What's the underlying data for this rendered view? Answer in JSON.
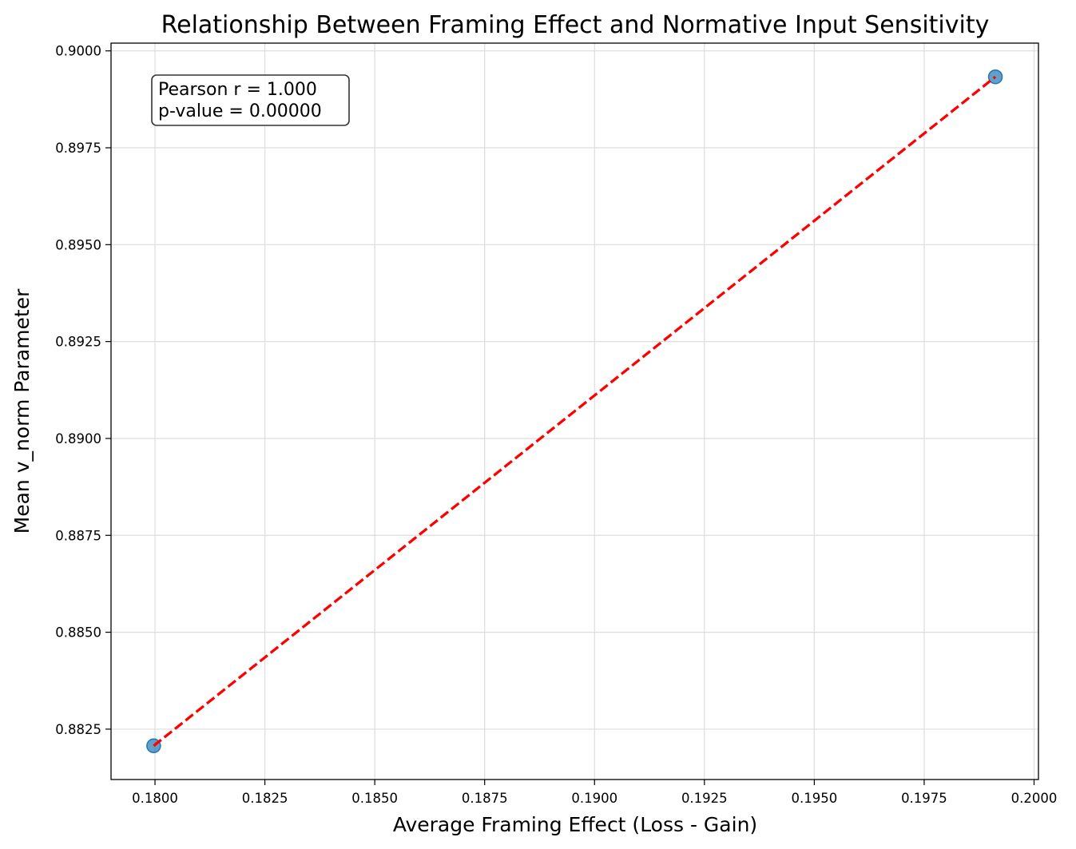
{
  "chart_data": {
    "type": "scatter",
    "title": "Relationship Between Framing Effect and Normative Input Sensitivity",
    "xlabel": "Average Framing Effect (Loss - Gain)",
    "ylabel": "Mean v_norm Parameter",
    "xlim": [
      0.179,
      0.2001
    ],
    "ylim": [
      0.8812,
      0.9002
    ],
    "xticks": [
      0.18,
      0.1825,
      0.185,
      0.1875,
      0.19,
      0.1925,
      0.195,
      0.1975,
      0.2
    ],
    "xtick_labels": [
      "0.1800",
      "0.1825",
      "0.1850",
      "0.1875",
      "0.1900",
      "0.1925",
      "0.1950",
      "0.1975",
      "0.2000"
    ],
    "yticks": [
      0.8825,
      0.885,
      0.8875,
      0.89,
      0.8925,
      0.895,
      0.8975,
      0.9
    ],
    "ytick_labels": [
      "0.8825",
      "0.8850",
      "0.8875",
      "0.8900",
      "0.8925",
      "0.8950",
      "0.8975",
      "0.9000"
    ],
    "grid": true,
    "points": [
      {
        "x": 0.17997,
        "y": 0.88207
      },
      {
        "x": 0.19912,
        "y": 0.89933
      }
    ],
    "fit_line": {
      "x": [
        0.17997,
        0.19912
      ],
      "y": [
        0.88207,
        0.89933
      ],
      "color": "#ff0000",
      "style": "dashed"
    },
    "point_color": "#1f77b4",
    "annotation": {
      "lines": [
        "Pearson r = 1.000",
        "p-value = 0.00000"
      ],
      "placement": "top-left"
    }
  }
}
